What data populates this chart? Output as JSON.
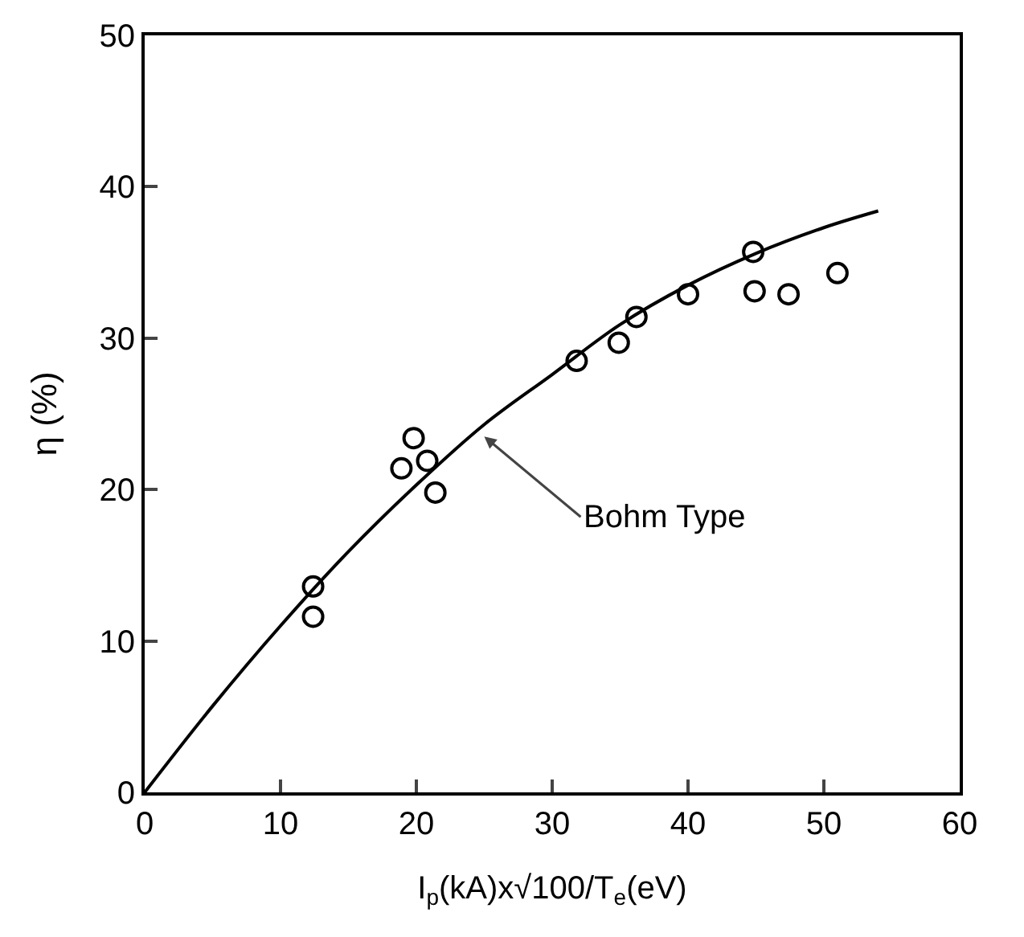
{
  "chart_data": {
    "type": "scatter",
    "xlabel": "I$_{p}$(kA)x√100/T$_{e}$(eV)",
    "ylabel": "η (%)",
    "xlim": [
      0,
      60
    ],
    "xticks": [
      0,
      10,
      20,
      30,
      40,
      50,
      60
    ],
    "ylim": [
      0,
      50
    ],
    "yticks": [
      0,
      10,
      20,
      30,
      40,
      50
    ],
    "marker": "circle",
    "series": [
      {
        "type": "scatter",
        "color": "#000000",
        "x": [
          12.4,
          12.4,
          18.9,
          19.8,
          20.8,
          21.4,
          31.8,
          34.9,
          36.2,
          40.0,
          44.8,
          44.9,
          47.4,
          51.0
        ],
        "values": [
          13.6,
          11.6,
          21.4,
          23.4,
          21.9,
          19.8,
          28.5,
          29.7,
          31.4,
          32.9,
          35.7,
          33.1,
          32.9,
          34.3
        ]
      },
      {
        "type": "line",
        "color": "#000000",
        "marker": "none",
        "line_style": "solid",
        "x": [
          0,
          5,
          10,
          15,
          20,
          25,
          30,
          35,
          40,
          45,
          50,
          54
        ],
        "values": [
          0,
          5.7,
          11.0,
          15.9,
          20.3,
          24.3,
          27.6,
          30.9,
          33.5,
          35.6,
          37.3,
          38.4
        ]
      }
    ],
    "annotations": [
      {
        "text": "Bohm Type",
        "x": 25,
        "y": 23.5
      }
    ]
  }
}
